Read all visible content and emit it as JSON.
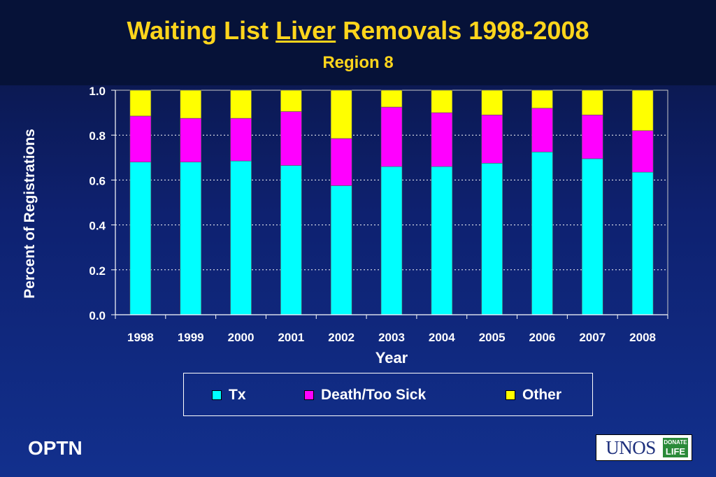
{
  "slide": {
    "title_before": "Waiting List ",
    "title_underlined": "Liver",
    "title_after": " Removals 1998-2008",
    "subtitle": "Region 8",
    "footer_left": "OPTN",
    "logo_text": "UNOS",
    "logo_badge_line1": "DONATE",
    "logo_badge_line2": "LIFE"
  },
  "chart_data": {
    "type": "bar",
    "stacked": true,
    "title": "Waiting List Liver Removals 1998-2008",
    "subtitle": "Region 8",
    "xlabel": "Year",
    "ylabel": "Percent of Registrations",
    "ylim": [
      0,
      1
    ],
    "yticks": [
      "0.0",
      "0.2",
      "0.4",
      "0.6",
      "0.8",
      "1.0"
    ],
    "grid": true,
    "legend_position": "bottom",
    "categories": [
      "1998",
      "1999",
      "2000",
      "2001",
      "2002",
      "2003",
      "2004",
      "2005",
      "2006",
      "2007",
      "2008"
    ],
    "series": [
      {
        "name": "Tx",
        "color": "#00ffff",
        "values": [
          0.68,
          0.68,
          0.685,
          0.665,
          0.575,
          0.66,
          0.66,
          0.675,
          0.725,
          0.695,
          0.635
        ]
      },
      {
        "name": "Death/Too Sick",
        "color": "#ff00ff",
        "values": [
          0.205,
          0.195,
          0.19,
          0.24,
          0.21,
          0.265,
          0.24,
          0.215,
          0.195,
          0.195,
          0.185
        ]
      },
      {
        "name": "Other",
        "color": "#ffff00",
        "values": [
          0.115,
          0.125,
          0.125,
          0.095,
          0.215,
          0.075,
          0.1,
          0.11,
          0.08,
          0.11,
          0.18
        ]
      }
    ]
  }
}
